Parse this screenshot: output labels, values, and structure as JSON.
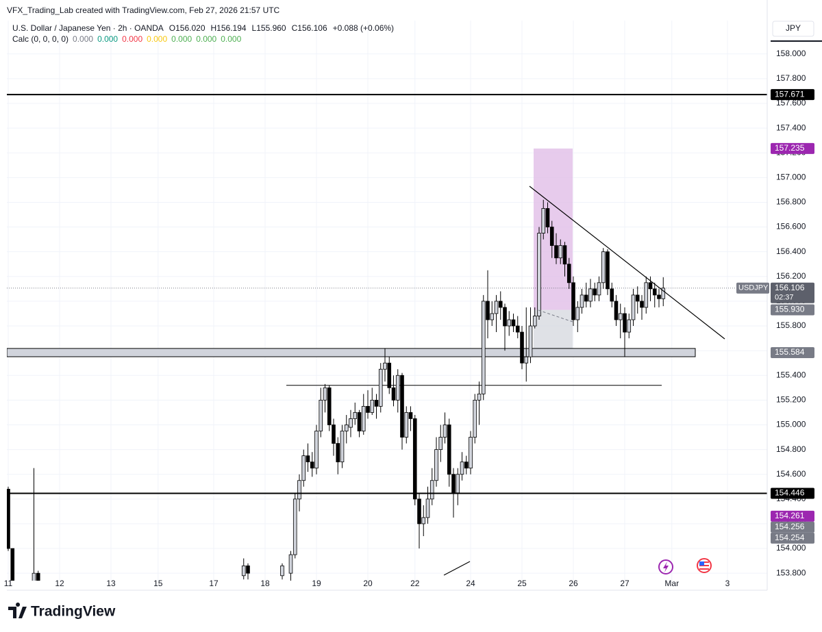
{
  "chart_data": {
    "type": "candlestick",
    "credit": "VFX_Trading_Lab created with TradingView.com, Feb 27, 2026 21:57 UTC",
    "symbol": "U.S. Dollar / Japanese Yen · 2h · OANDA",
    "ohlc_legend": [
      "O156.020",
      "H156.194",
      "L155.960",
      "C156.106",
      "+0.088 (+0.06%)"
    ],
    "calc": "Calc (0, 0, 0, 0)",
    "calc_values": [
      {
        "text": "0.000",
        "color": "#787b86"
      },
      {
        "text": "0.000",
        "color": "#089981"
      },
      {
        "text": "0.000",
        "color": "#f23645"
      },
      {
        "text": "0.000",
        "color": "#f9c80e"
      },
      {
        "text": "0.000",
        "color": "#4caf50"
      },
      {
        "text": "0.000",
        "color": "#4caf50"
      },
      {
        "text": "0.000",
        "color": "#4caf50"
      }
    ],
    "currency": "JPY",
    "brand": "TradingView",
    "up_color": "#d1d4dc",
    "down_color": "#000000",
    "wick_color": "#000000",
    "ylim": [
      153.74,
      158.27
    ],
    "yticks": [
      {
        "value": 153.8,
        "label": "153.800"
      },
      {
        "value": 154.0,
        "label": "154.000"
      },
      {
        "value": 154.2,
        "label": "154.200"
      },
      {
        "value": 154.4,
        "label": "154.400"
      },
      {
        "value": 154.6,
        "label": "154.600"
      },
      {
        "value": 154.8,
        "label": "154.800"
      },
      {
        "value": 155.0,
        "label": "155.000"
      },
      {
        "value": 155.2,
        "label": "155.200"
      },
      {
        "value": 155.4,
        "label": "155.400"
      },
      {
        "value": 155.6,
        "label": "155.600"
      },
      {
        "value": 155.8,
        "label": "155.800"
      },
      {
        "value": 156.0,
        "label": "156.000"
      },
      {
        "value": 156.2,
        "label": "156.200"
      },
      {
        "value": 156.4,
        "label": "156.400"
      },
      {
        "value": 156.6,
        "label": "156.600"
      },
      {
        "value": 156.8,
        "label": "156.800"
      },
      {
        "value": 157.0,
        "label": "157.000"
      },
      {
        "value": 157.2,
        "label": "157.200"
      },
      {
        "value": 157.4,
        "label": "157.400"
      },
      {
        "value": 157.6,
        "label": "157.600"
      },
      {
        "value": 157.8,
        "label": "157.800"
      },
      {
        "value": 158.0,
        "label": "158.000"
      }
    ],
    "grid": true,
    "categories": [
      "11",
      null,
      null,
      null,
      null,
      null,
      null,
      null,
      null,
      null,
      null,
      null,
      "12",
      null,
      null,
      null,
      null,
      null,
      null,
      null,
      null,
      null,
      null,
      null,
      "13",
      null,
      null,
      null,
      null,
      null,
      null,
      null,
      null,
      null,
      null,
      "15",
      null,
      null,
      null,
      null,
      null,
      null,
      null,
      null,
      null,
      null,
      null,
      null,
      "17",
      null,
      null,
      null,
      null,
      null,
      null,
      null,
      null,
      null,
      null,
      null,
      "18",
      null,
      null,
      null,
      null,
      null,
      null,
      null,
      null,
      null,
      null,
      null,
      "19",
      null,
      null,
      null,
      null,
      null,
      null,
      null,
      null,
      null,
      null,
      null,
      "20",
      null,
      null,
      null,
      null,
      null,
      null,
      null,
      null,
      null,
      null,
      "22",
      null,
      null,
      null,
      null,
      null,
      null,
      null,
      null,
      null,
      null,
      null,
      null,
      "24",
      null,
      null,
      null,
      null,
      null,
      null,
      null,
      null,
      null,
      null,
      null,
      "25",
      null,
      null,
      null,
      null,
      null,
      null,
      null,
      null,
      null,
      null,
      null,
      "26",
      null,
      null,
      null,
      null,
      null,
      null,
      null,
      null,
      null,
      null,
      null,
      "27",
      null,
      null,
      null,
      null,
      null,
      null,
      null,
      null,
      null,
      null,
      "Mar",
      null,
      null,
      null,
      null,
      null,
      null,
      null,
      null,
      null,
      null,
      null,
      null,
      "3"
    ],
    "open": [
      154.48,
      154.0,
      null,
      null,
      null,
      null,
      153.72,
      153.8,
      null,
      null,
      null,
      null,
      null,
      null,
      null,
      null,
      null,
      null,
      null,
      null,
      null,
      null,
      null,
      null,
      null,
      null,
      null,
      null,
      null,
      null,
      null,
      null,
      null,
      null,
      null,
      null,
      null,
      null,
      null,
      null,
      null,
      null,
      null,
      null,
      null,
      null,
      null,
      null,
      null,
      null,
      null,
      null,
      null,
      null,
      null,
      153.78,
      153.86,
      null,
      null,
      null,
      null,
      null,
      null,
      null,
      153.78,
      null,
      153.8,
      153.95,
      154.4,
      154.55,
      154.75,
      154.7,
      154.65,
      154.95,
      155.2,
      155.3,
      155.0,
      154.85,
      154.7,
      154.95,
      154.98,
      155.05,
      155.1,
      154.95,
      155.15,
      155.1,
      155.2,
      155.15,
      155.45,
      155.5,
      155.3,
      155.2,
      155.4,
      154.9,
      155.1,
      155.05,
      154.4,
      154.2,
      154.25,
      154.4,
      154.55,
      154.8,
      154.9,
      155.0,
      154.6,
      154.45,
      154.6,
      154.7,
      154.65,
      154.9,
      155.2,
      155.25,
      156.0,
      155.85,
      155.9,
      156.0,
      155.95,
      155.8,
      155.85,
      155.8,
      155.75,
      155.5,
      155.55,
      155.8,
      155.88,
      156.55,
      156.75,
      156.6,
      156.45,
      156.35,
      156.45,
      156.3,
      156.15,
      155.85,
      155.95,
      156.05,
      156.0,
      156.1,
      156.05,
      156.15,
      156.4,
      156.1,
      156.0,
      155.85,
      155.9,
      155.75,
      155.85,
      156.05,
      156.0,
      155.95,
      156.15,
      156.1,
      156.05,
      156.02,
      null,
      null,
      null,
      null,
      null,
      null,
      null,
      null,
      null,
      null,
      null,
      null,
      null,
      null,
      null
    ],
    "high": [
      154.5,
      154.0,
      null,
      null,
      null,
      null,
      154.65,
      153.82,
      null,
      null,
      null,
      null,
      null,
      null,
      null,
      null,
      null,
      null,
      null,
      null,
      null,
      null,
      null,
      null,
      null,
      null,
      null,
      null,
      null,
      null,
      null,
      null,
      null,
      null,
      null,
      null,
      null,
      null,
      null,
      null,
      null,
      null,
      null,
      null,
      null,
      null,
      null,
      null,
      null,
      null,
      null,
      null,
      null,
      null,
      null,
      153.92,
      153.88,
      null,
      null,
      null,
      null,
      null,
      null,
      null,
      153.88,
      null,
      153.98,
      154.45,
      154.6,
      154.8,
      154.85,
      154.78,
      155.0,
      155.3,
      155.33,
      155.32,
      155.05,
      154.9,
      155.0,
      155.08,
      155.12,
      155.18,
      155.12,
      155.25,
      155.28,
      155.3,
      155.25,
      155.5,
      155.62,
      155.55,
      155.4,
      155.45,
      155.42,
      155.15,
      155.15,
      155.08,
      154.45,
      154.35,
      154.5,
      154.65,
      154.9,
      155.0,
      155.1,
      155.05,
      154.65,
      154.65,
      154.78,
      154.75,
      154.95,
      155.25,
      155.35,
      156.05,
      156.25,
      156.0,
      156.05,
      156.08,
      155.98,
      155.92,
      155.9,
      155.88,
      155.8,
      155.95,
      155.95,
      155.95,
      156.6,
      156.82,
      156.8,
      156.65,
      156.55,
      156.5,
      156.48,
      156.35,
      156.2,
      156.0,
      156.1,
      156.15,
      156.18,
      156.15,
      156.2,
      156.43,
      156.42,
      156.15,
      156.05,
      155.98,
      155.95,
      155.9,
      156.1,
      156.12,
      156.05,
      156.2,
      156.2,
      156.15,
      156.1,
      156.194,
      null,
      null,
      null,
      null,
      null,
      null,
      null,
      null,
      null,
      null,
      null,
      null,
      null,
      null,
      null
    ],
    "low": [
      153.98,
      153.65,
      null,
      null,
      null,
      null,
      153.7,
      153.7,
      null,
      null,
      null,
      null,
      null,
      null,
      null,
      null,
      null,
      null,
      null,
      null,
      null,
      null,
      null,
      null,
      null,
      null,
      null,
      null,
      null,
      null,
      null,
      null,
      null,
      null,
      null,
      null,
      null,
      null,
      null,
      null,
      null,
      null,
      null,
      null,
      null,
      null,
      null,
      null,
      null,
      null,
      null,
      null,
      null,
      null,
      null,
      153.75,
      153.75,
      null,
      null,
      null,
      null,
      null,
      null,
      null,
      153.75,
      null,
      153.7,
      153.92,
      154.3,
      154.5,
      154.62,
      154.58,
      154.6,
      154.9,
      155.1,
      154.95,
      154.75,
      154.6,
      154.65,
      154.85,
      154.9,
      155.0,
      154.9,
      154.92,
      155.05,
      155.08,
      155.05,
      155.1,
      155.35,
      155.25,
      155.15,
      155.1,
      154.8,
      154.85,
      154.95,
      154.35,
      154.0,
      154.1,
      154.2,
      154.35,
      154.5,
      154.7,
      154.85,
      154.5,
      154.25,
      154.35,
      154.55,
      154.6,
      154.6,
      154.85,
      155.0,
      155.2,
      155.7,
      155.8,
      155.75,
      155.85,
      155.6,
      155.72,
      155.75,
      155.7,
      155.45,
      155.35,
      155.5,
      155.78,
      155.85,
      156.5,
      156.55,
      156.35,
      156.3,
      156.3,
      156.2,
      156.1,
      155.8,
      155.75,
      155.9,
      155.95,
      155.95,
      156.0,
      156.0,
      156.1,
      156.05,
      155.95,
      155.8,
      155.7,
      155.55,
      155.7,
      155.8,
      155.9,
      155.85,
      155.9,
      156.0,
      155.95,
      155.95,
      155.96,
      null,
      null,
      null,
      null,
      null,
      null,
      null,
      null,
      null,
      null,
      null,
      null,
      null,
      null,
      null
    ],
    "close": [
      154.0,
      153.7,
      null,
      null,
      null,
      null,
      153.8,
      153.72,
      null,
      null,
      null,
      null,
      null,
      null,
      null,
      null,
      null,
      null,
      null,
      null,
      null,
      null,
      null,
      null,
      null,
      null,
      null,
      null,
      null,
      null,
      null,
      null,
      null,
      null,
      null,
      null,
      null,
      null,
      null,
      null,
      null,
      null,
      null,
      null,
      null,
      null,
      null,
      null,
      null,
      null,
      null,
      null,
      null,
      null,
      null,
      153.86,
      153.8,
      null,
      null,
      null,
      null,
      null,
      null,
      null,
      153.86,
      null,
      153.95,
      154.4,
      154.55,
      154.75,
      154.7,
      154.65,
      154.95,
      155.2,
      155.3,
      155.0,
      154.85,
      154.7,
      154.95,
      155.0,
      155.05,
      155.1,
      154.95,
      155.15,
      155.1,
      155.2,
      155.15,
      155.45,
      155.5,
      155.3,
      155.2,
      155.4,
      154.9,
      155.1,
      155.05,
      154.4,
      154.2,
      154.25,
      154.4,
      154.55,
      154.8,
      154.9,
      155.0,
      154.6,
      154.45,
      154.6,
      154.7,
      154.65,
      154.9,
      155.2,
      155.25,
      156.0,
      155.85,
      155.9,
      156.0,
      155.95,
      155.8,
      155.85,
      155.8,
      155.75,
      155.5,
      155.55,
      155.8,
      155.88,
      156.55,
      156.75,
      156.6,
      156.45,
      156.35,
      156.45,
      156.3,
      156.15,
      155.85,
      155.95,
      156.05,
      156.0,
      156.1,
      156.05,
      156.15,
      156.4,
      156.1,
      156.0,
      155.85,
      155.9,
      155.75,
      155.85,
      156.05,
      156.0,
      155.95,
      156.15,
      156.1,
      156.05,
      156.02,
      156.106,
      null,
      null,
      null,
      null,
      null,
      null,
      null,
      null,
      null,
      null,
      null,
      null,
      null,
      null,
      null
    ],
    "hlines": [
      {
        "value": 157.671,
        "color": "#000000"
      },
      {
        "value": 154.446,
        "color": "#000000"
      }
    ],
    "zone": {
      "top": 155.618,
      "bottom": 155.551,
      "tag": 155.584,
      "color": "#d1d4dc"
    },
    "level_line": 155.32,
    "purple_box": {
      "top": 157.235,
      "bottom": 155.93,
      "color": "#e1bee7",
      "tag_color": "#9c27b0"
    },
    "gray_box": {
      "top": {
        "value": 155.93,
        "label": "155.930"
      },
      "bottom": 155.57,
      "color": "#d1d4dc",
      "tag_color": "#787b86"
    },
    "last": {
      "symbol": "USDJPY",
      "value": 156.106,
      "countdown": "02:37"
    },
    "extra_tags": [
      {
        "value": 154.261,
        "color": "#9c27b0"
      },
      {
        "value": 154.256,
        "color": "#787b86"
      },
      {
        "value": 154.254,
        "color": "#787b86"
      }
    ]
  }
}
